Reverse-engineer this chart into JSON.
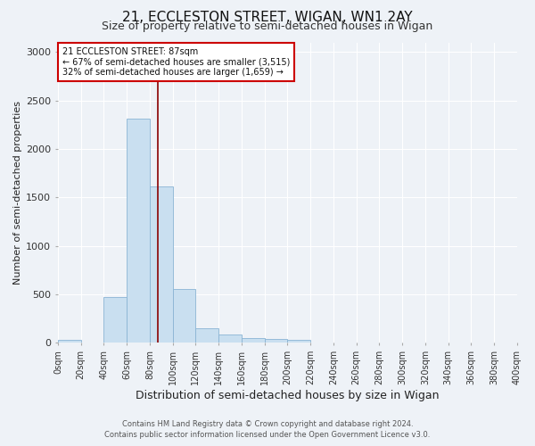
{
  "title": "21, ECCLESTON STREET, WIGAN, WN1 2AY",
  "subtitle": "Size of property relative to semi-detached houses in Wigan",
  "xlabel": "Distribution of semi-detached houses by size in Wigan",
  "ylabel": "Number of semi-detached properties",
  "footer_line1": "Contains HM Land Registry data © Crown copyright and database right 2024.",
  "footer_line2": "Contains public sector information licensed under the Open Government Licence v3.0.",
  "annotation_title": "21 ECCLESTON STREET: 87sqm",
  "annotation_line1": "← 67% of semi-detached houses are smaller (3,515)",
  "annotation_line2": "32% of semi-detached houses are larger (1,659) →",
  "property_size": 87,
  "bar_edges": [
    0,
    20,
    40,
    60,
    80,
    100,
    120,
    140,
    160,
    180,
    200,
    220,
    240,
    260,
    280,
    300,
    320,
    340,
    360,
    380,
    400
  ],
  "bar_heights": [
    30,
    0,
    470,
    2310,
    1610,
    560,
    155,
    90,
    50,
    40,
    30,
    0,
    0,
    0,
    0,
    0,
    0,
    0,
    0,
    0
  ],
  "bar_color": "#c9dff0",
  "bar_edge_color": "#8ab4d4",
  "vline_color": "#8b0000",
  "vline_x": 87,
  "ylim": [
    0,
    3100
  ],
  "yticks": [
    0,
    500,
    1000,
    1500,
    2000,
    2500,
    3000
  ],
  "background_color": "#eef2f7",
  "plot_bg_color": "#eef2f7",
  "grid_color": "#ffffff",
  "title_fontsize": 11,
  "subtitle_fontsize": 9,
  "xlabel_fontsize": 9,
  "ylabel_fontsize": 8,
  "tick_fontsize": 7,
  "annotation_box_color": "#ffffff",
  "annotation_box_edge": "#cc0000",
  "annotation_fontsize": 7
}
